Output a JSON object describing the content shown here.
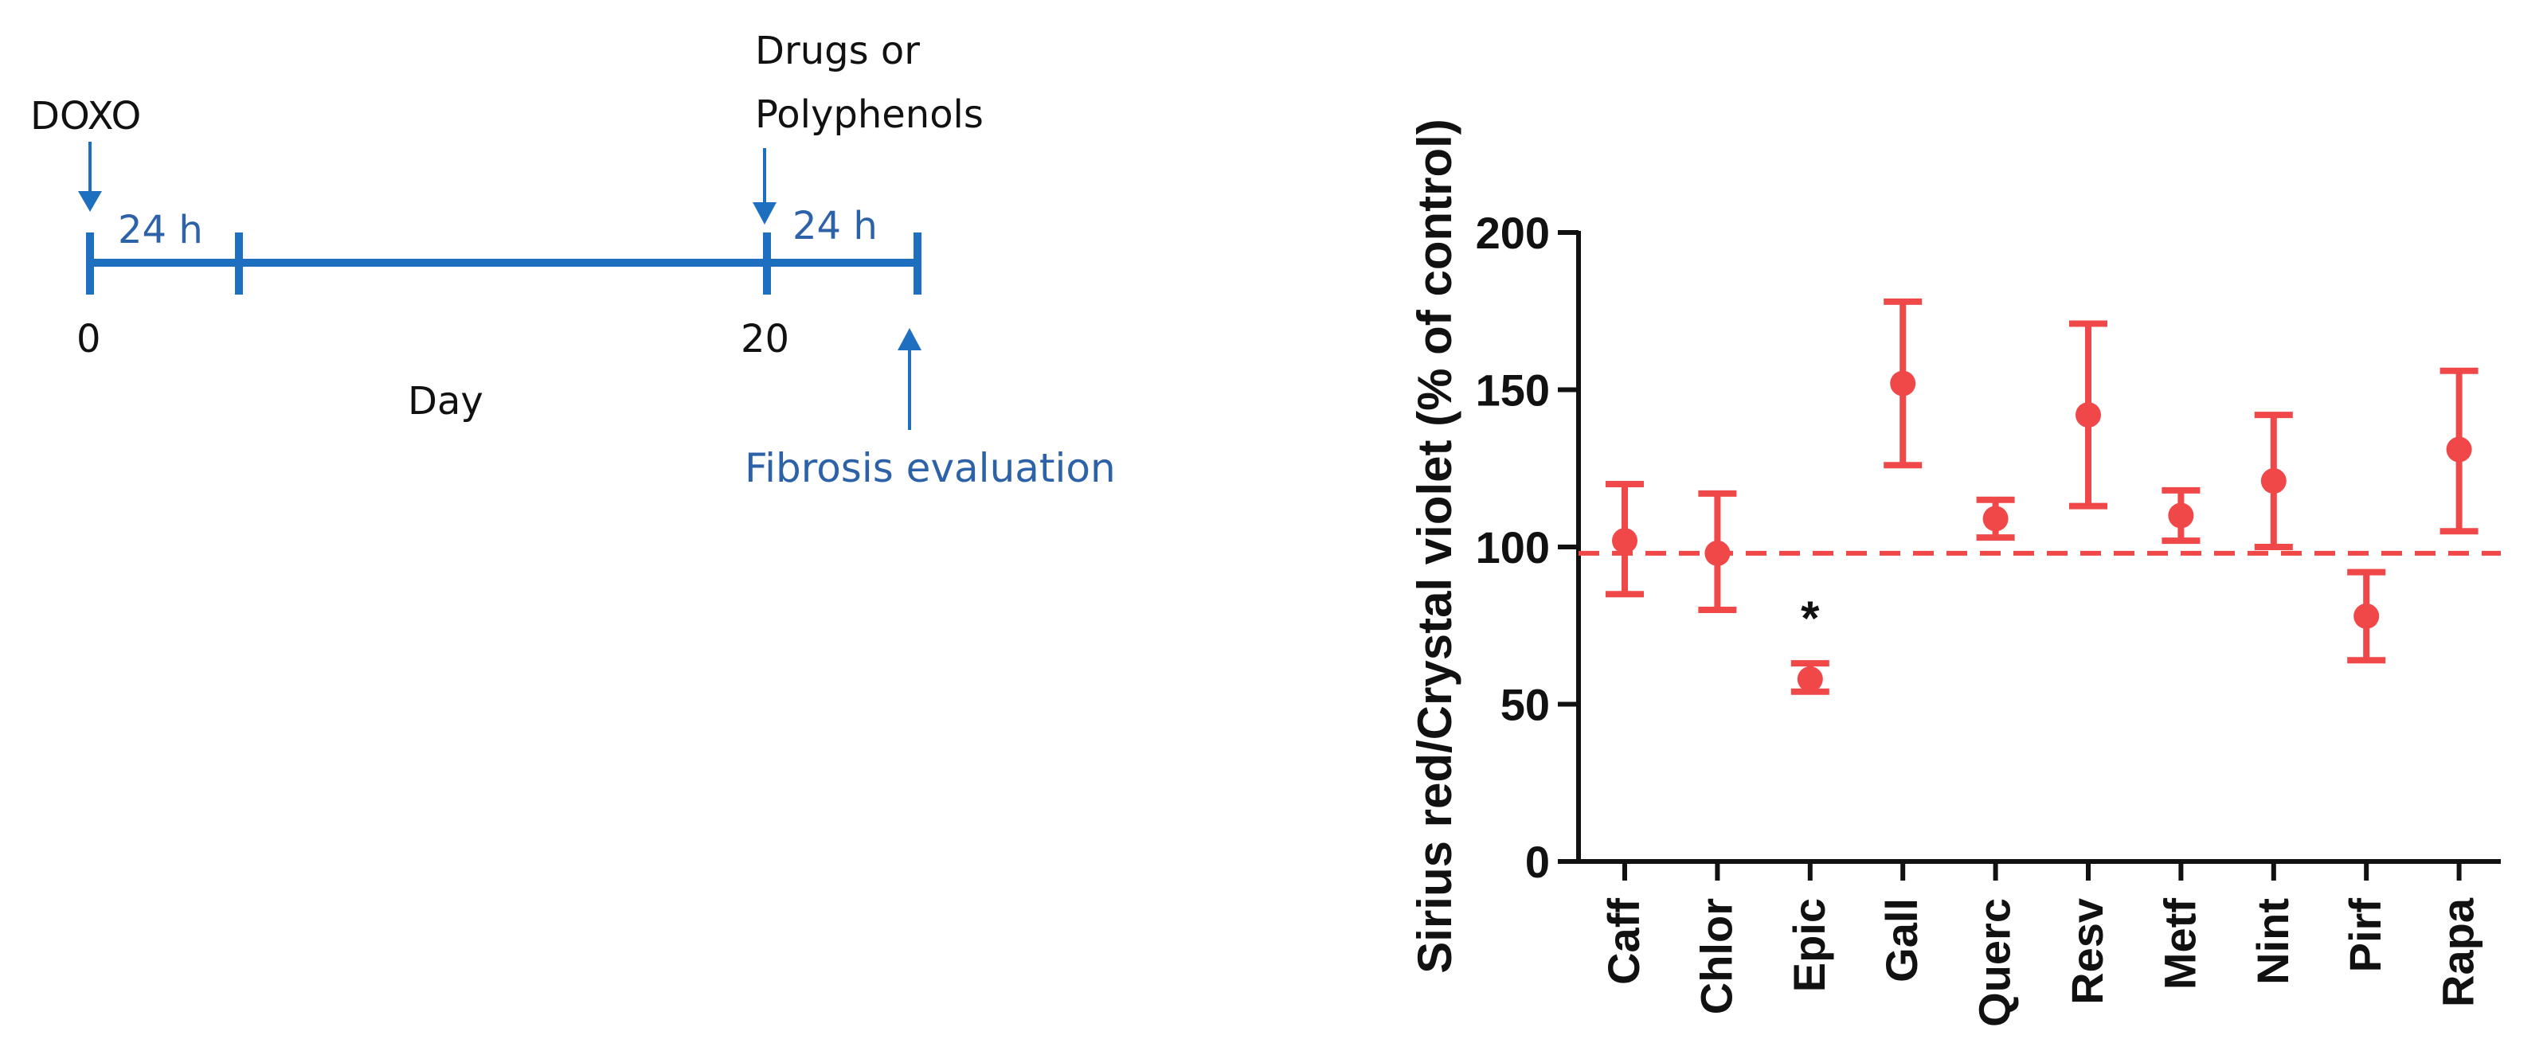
{
  "timeline": {
    "doxo_label": "DOXO",
    "drug_label_line1": "Drugs or",
    "drug_label_line2": "Polyphenols",
    "interval1_label": "24 h",
    "interval2_label": "24 h",
    "tick_0": "0",
    "tick_20": "20",
    "axis_label": "Day",
    "evaluation_label": "Fibrosis evaluation",
    "color": "#1f6fc0",
    "text_color_blue": "#2e62a8"
  },
  "chart_data": {
    "type": "scatter",
    "subtype": "mean_with_error_bars",
    "ylabel": "Sirius red/Crystal violet  (% of control)",
    "xlabel": "",
    "title": "",
    "ylim": [
      0,
      200
    ],
    "yticks": [
      0,
      50,
      100,
      150,
      200
    ],
    "categories": [
      "Caff",
      "Chlor",
      "Epic",
      "Gall",
      "Querc",
      "Resv",
      "Metf",
      "Nint",
      "Pirf",
      "Rapa"
    ],
    "means": [
      102,
      98,
      58,
      152,
      109,
      142,
      110,
      121,
      78,
      131
    ],
    "upper": [
      120,
      117,
      63,
      178,
      115,
      171,
      118,
      142,
      92,
      156
    ],
    "lower": [
      85,
      80,
      54,
      126,
      103,
      113,
      102,
      100,
      64,
      105
    ],
    "reference_line": 98,
    "annotations": [
      {
        "category": "Epic",
        "text": "*"
      }
    ],
    "color": "#f04848"
  }
}
